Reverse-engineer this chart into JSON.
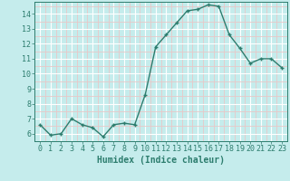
{
  "x": [
    0,
    1,
    2,
    3,
    4,
    5,
    6,
    7,
    8,
    9,
    10,
    11,
    12,
    13,
    14,
    15,
    16,
    17,
    18,
    19,
    20,
    21,
    22,
    23
  ],
  "y": [
    6.6,
    5.9,
    6.0,
    7.0,
    6.6,
    6.4,
    5.8,
    6.6,
    6.7,
    6.6,
    8.6,
    11.8,
    12.6,
    13.4,
    14.2,
    14.3,
    14.6,
    14.5,
    12.6,
    11.7,
    10.7,
    11.0,
    11.0,
    10.4
  ],
  "line_color": "#2d7d6e",
  "marker": "+",
  "bg_color": "#c5ecec",
  "grid_major_color": "#ffffff",
  "grid_minor_color": "#e8c8c8",
  "xlabel": "Humidex (Indice chaleur)",
  "ylim": [
    5.5,
    14.8
  ],
  "xlim": [
    -0.5,
    23.5
  ],
  "yticks": [
    6,
    7,
    8,
    9,
    10,
    11,
    12,
    13,
    14
  ],
  "xticks": [
    0,
    1,
    2,
    3,
    4,
    5,
    6,
    7,
    8,
    9,
    10,
    11,
    12,
    13,
    14,
    15,
    16,
    17,
    18,
    19,
    20,
    21,
    22,
    23
  ],
  "tick_label_fontsize": 6.0,
  "xlabel_fontsize": 7.0,
  "line_width": 1.0,
  "marker_size": 3.5,
  "marker_edge_width": 1.0
}
